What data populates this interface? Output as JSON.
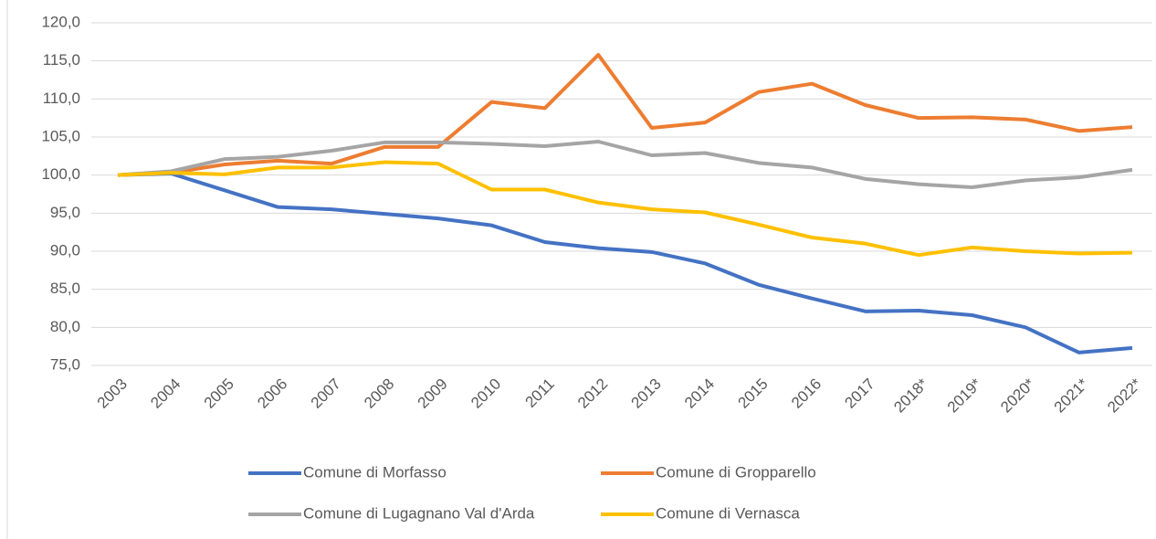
{
  "chart_data": {
    "type": "line",
    "categories": [
      "2003",
      "2004",
      "2005",
      "2006",
      "2007",
      "2008",
      "2009",
      "2010",
      "2011",
      "2012",
      "2013",
      "2014",
      "2015",
      "2016",
      "2017",
      "2018*",
      "2019*",
      "2020*",
      "2021*",
      "2022*"
    ],
    "series": [
      {
        "name": "Comune di Morfasso",
        "color": "#4472c4",
        "values": [
          100,
          100.2,
          98.0,
          95.8,
          95.5,
          94.9,
          94.3,
          93.4,
          91.2,
          90.4,
          89.9,
          88.4,
          85.6,
          83.8,
          82.1,
          82.2,
          81.6,
          80.0,
          76.7,
          77.3
        ]
      },
      {
        "name": "Comune di Gropparello",
        "color": "#ed7d31",
        "values": [
          100,
          100.3,
          101.4,
          101.9,
          101.5,
          103.7,
          103.7,
          109.6,
          108.8,
          115.8,
          106.2,
          106.9,
          110.9,
          112.0,
          109.2,
          107.5,
          107.6,
          107.3,
          105.8,
          106.3
        ]
      },
      {
        "name": "Comune di Lugagnano Val d'Arda",
        "color": "#a5a5a5",
        "values": [
          100,
          100.5,
          102.1,
          102.4,
          103.2,
          104.3,
          104.3,
          104.1,
          103.8,
          104.4,
          102.6,
          102.9,
          101.6,
          101.0,
          99.5,
          98.8,
          98.4,
          99.3,
          99.7,
          100.7
        ]
      },
      {
        "name": "Comune di Vernasca",
        "color": "#ffc000",
        "values": [
          100,
          100.3,
          100.1,
          101.0,
          101.0,
          101.7,
          101.5,
          98.1,
          98.1,
          96.4,
          95.5,
          95.1,
          93.5,
          91.8,
          91.0,
          89.5,
          90.5,
          90.0,
          89.7,
          89.8
        ]
      }
    ],
    "ylim": [
      75,
      120
    ],
    "yticks": [
      {
        "value": 75,
        "label": "75,0"
      },
      {
        "value": 80,
        "label": "80,0"
      },
      {
        "value": 85,
        "label": "85,0"
      },
      {
        "value": 90,
        "label": "90,0"
      },
      {
        "value": 95,
        "label": "95,0"
      },
      {
        "value": 100,
        "label": "100,0"
      },
      {
        "value": 105,
        "label": "105,0"
      },
      {
        "value": 110,
        "label": "110,0"
      },
      {
        "value": 115,
        "label": "115,0"
      },
      {
        "value": 120,
        "label": "120,0"
      }
    ],
    "grid": true
  }
}
